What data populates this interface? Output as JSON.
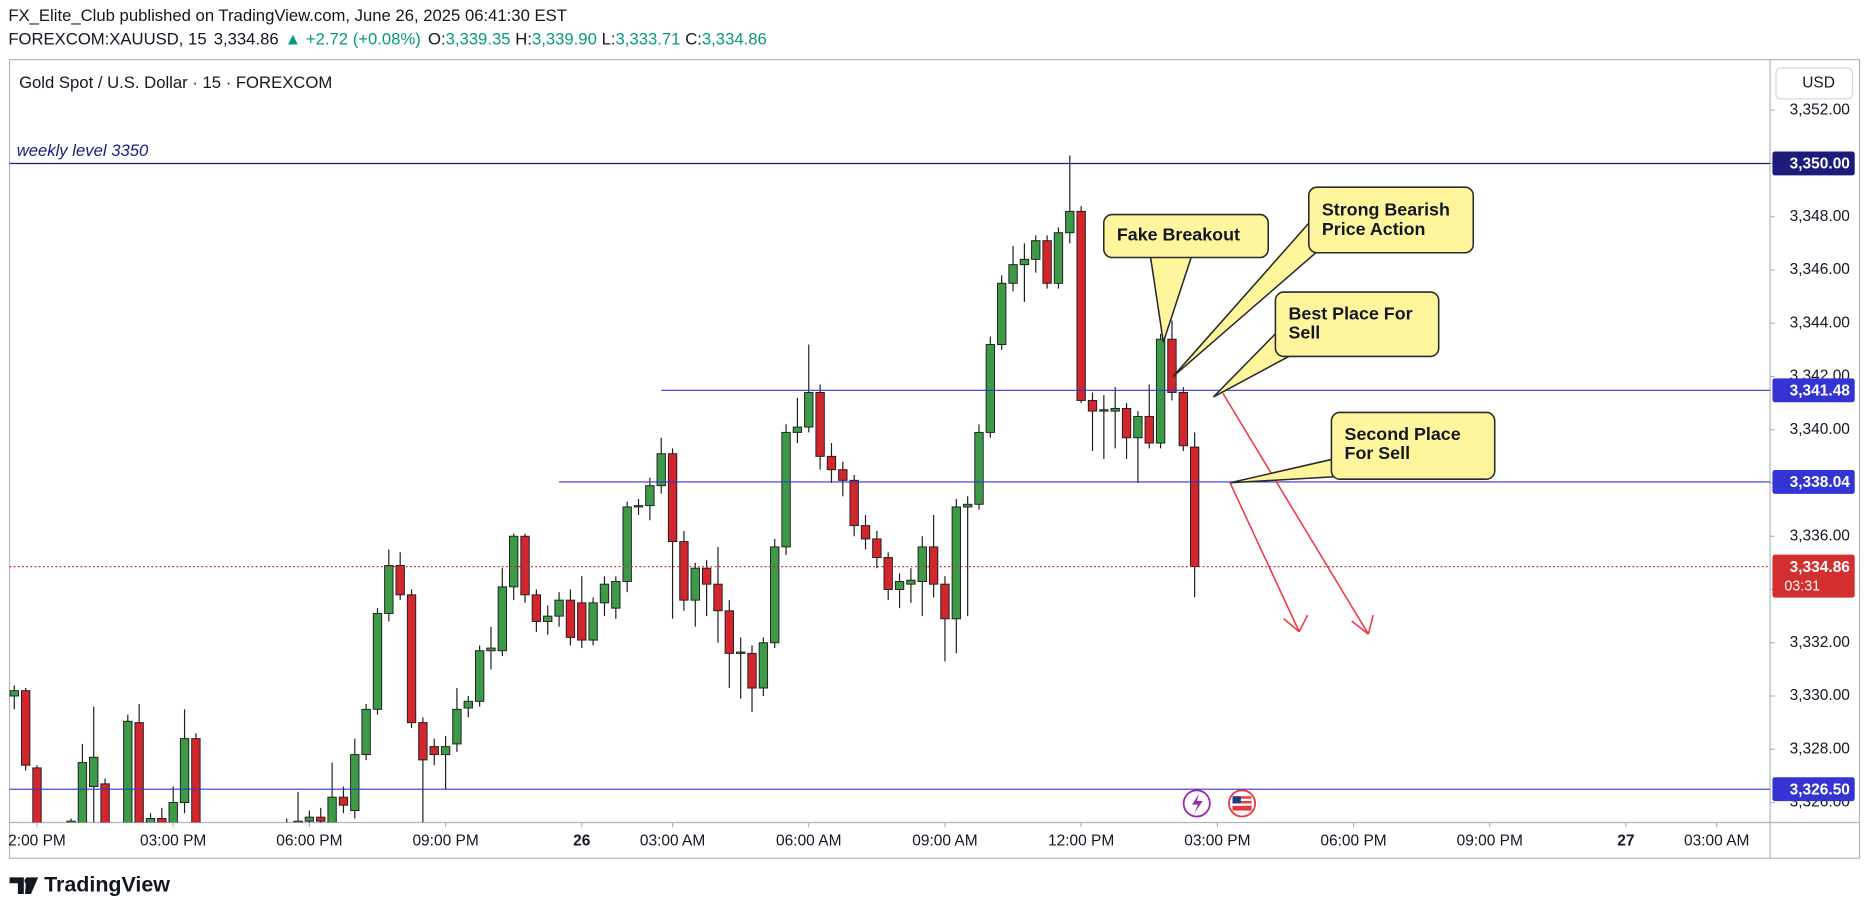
{
  "header": {
    "published": "FX_Elite_Club published on TradingView.com, June 26, 2025 06:41:30 EST",
    "symbol": "FOREXCOM:XAUUSD, 15",
    "last": "3,334.86",
    "change": "+2.72 (+0.08%)",
    "ohlc": [
      {
        "key": "O:",
        "value": "3,339.35"
      },
      {
        "key": "H:",
        "value": "3,339.90"
      },
      {
        "key": "L:",
        "value": "3,333.71"
      },
      {
        "key": "C:",
        "value": "3,334.86"
      }
    ]
  },
  "chart_data": {
    "type": "candlestick",
    "title": "Gold Spot / U.S. Dollar · 15 · FOREXCOM",
    "currency": "USD",
    "up_color": "#3d9a46",
    "down_color": "#d3262c",
    "open": [
      3330.0,
      3330.2,
      3327.3,
      3324.5,
      3324.0,
      3324.8,
      3325.0,
      3326.6,
      3326.7,
      3324.5,
      3325.0,
      3329.0,
      3324.9,
      3325.4,
      3325.1,
      3326.0,
      3328.4,
      3324.8,
      3324.0,
      3323.5,
      3324.0,
      3323.8,
      3324.2,
      3324.6,
      3324.3,
      3325.0,
      3325.3,
      3325.45,
      3325.0,
      3326.2,
      3325.7,
      3327.8,
      3329.5,
      3333.1,
      3334.9,
      3333.8,
      3329.0,
      3328.1,
      3327.8,
      3328.2,
      3329.55,
      3329.8,
      3331.7,
      3331.7,
      3334.1,
      3336.0,
      3333.8,
      3332.8,
      3333.0,
      3333.6,
      3333.5,
      3332.1,
      3333.5,
      3333.3,
      3334.3,
      3337.1,
      3337.15,
      3337.9,
      3339.1,
      3335.8,
      3333.6,
      3334.8,
      3334.2,
      3333.2,
      3331.6,
      3331.6,
      3330.3,
      3332.0,
      3335.6,
      3339.9,
      3340.1,
      3341.4,
      3339.0,
      3338.5,
      3338.1,
      3336.4,
      3335.9,
      3335.2,
      3334.0,
      3334.2,
      3334.3,
      3335.6,
      3334.2,
      3332.9,
      3337.1,
      3337.2,
      3339.9,
      3343.2,
      3345.5,
      3346.2,
      3346.4,
      3347.1,
      3345.5,
      3347.4,
      3348.2,
      3341.1,
      3340.7,
      3340.7,
      3340.8,
      3339.7,
      3340.5,
      3339.5,
      3343.4,
      3341.4,
      3339.35
    ],
    "high": [
      3330.4,
      3330.3,
      3327.4,
      3325.0,
      3325.0,
      3325.4,
      3328.2,
      3329.6,
      3326.9,
      3325.2,
      3329.3,
      3329.7,
      3325.6,
      3325.8,
      3326.6,
      3329.5,
      3328.6,
      3325.0,
      3324.6,
      3324.2,
      3324.5,
      3324.4,
      3325.0,
      3325.0,
      3325.4,
      3326.4,
      3325.7,
      3325.8,
      3327.5,
      3326.6,
      3328.4,
      3329.7,
      3333.3,
      3335.5,
      3335.4,
      3334.0,
      3329.2,
      3328.4,
      3328.5,
      3330.3,
      3330.0,
      3331.9,
      3332.6,
      3334.8,
      3336.1,
      3336.1,
      3334.0,
      3333.4,
      3333.9,
      3334.0,
      3334.5,
      3333.7,
      3334.5,
      3334.5,
      3337.3,
      3337.4,
      3338.2,
      3339.7,
      3339.3,
      3336.2,
      3335.0,
      3335.1,
      3335.6,
      3333.6,
      3332.2,
      3331.9,
      3332.2,
      3335.9,
      3340.2,
      3341.2,
      3343.2,
      3341.7,
      3339.5,
      3338.8,
      3338.3,
      3336.8,
      3336.2,
      3335.4,
      3334.6,
      3334.8,
      3336.0,
      3336.8,
      3334.5,
      3337.4,
      3337.5,
      3340.2,
      3343.5,
      3345.8,
      3346.9,
      3347.0,
      3347.3,
      3347.3,
      3347.6,
      3350.3,
      3348.4,
      3341.4,
      3341.3,
      3341.6,
      3341.0,
      3340.7,
      3341.7,
      3343.6,
      3344.1,
      3341.6,
      3339.9
    ],
    "low": [
      3329.5,
      3327.2,
      3324.0,
      3323.5,
      3323.8,
      3324.5,
      3324.8,
      3324.8,
      3324.0,
      3323.8,
      3324.8,
      3324.5,
      3324.5,
      3324.6,
      3324.9,
      3325.6,
      3324.5,
      3323.6,
      3323.2,
      3323.0,
      3323.4,
      3323.1,
      3323.8,
      3324.0,
      3324.1,
      3324.8,
      3325.0,
      3325.0,
      3324.7,
      3325.6,
      3325.4,
      3327.6,
      3329.3,
      3332.8,
      3333.6,
      3328.8,
      3324.9,
      3327.4,
      3326.5,
      3327.9,
      3329.2,
      3329.6,
      3331.0,
      3331.5,
      3333.6,
      3333.5,
      3332.4,
      3332.3,
      3332.6,
      3331.9,
      3331.8,
      3331.9,
      3333.0,
      3332.9,
      3333.9,
      3336.8,
      3336.6,
      3337.6,
      3332.9,
      3333.2,
      3332.6,
      3333.0,
      3332.0,
      3330.3,
      3329.9,
      3329.4,
      3330.0,
      3331.8,
      3335.3,
      3339.5,
      3339.9,
      3338.5,
      3338.0,
      3337.5,
      3336.0,
      3335.5,
      3334.8,
      3333.6,
      3333.3,
      3333.5,
      3333.0,
      3333.7,
      3331.3,
      3331.6,
      3333.0,
      3337.0,
      3339.7,
      3343.0,
      3345.2,
      3344.8,
      3345.9,
      3345.3,
      3345.3,
      3347.0,
      3341.0,
      3339.2,
      3338.9,
      3339.3,
      3338.9,
      3338.0,
      3339.3,
      3339.3,
      3341.1,
      3339.2,
      3333.71
    ],
    "close": [
      3330.2,
      3327.4,
      3324.5,
      3324.0,
      3324.8,
      3325.3,
      3327.5,
      3327.7,
      3324.5,
      3325.0,
      3329.05,
      3324.9,
      3325.4,
      3325.1,
      3326.0,
      3328.4,
      3324.8,
      3324.0,
      3323.5,
      3324.0,
      3323.8,
      3324.2,
      3324.6,
      3324.3,
      3325.0,
      3325.3,
      3325.45,
      3325.3,
      3326.2,
      3325.9,
      3327.8,
      3329.5,
      3333.1,
      3334.9,
      3333.8,
      3329.0,
      3327.6,
      3327.8,
      3328.1,
      3329.5,
      3329.8,
      3331.7,
      3331.8,
      3334.1,
      3336.0,
      3333.8,
      3332.8,
      3333.0,
      3333.6,
      3332.2,
      3332.1,
      3333.5,
      3334.2,
      3334.3,
      3337.1,
      3337.15,
      3337.9,
      3339.1,
      3335.8,
      3333.6,
      3334.8,
      3334.2,
      3333.2,
      3331.6,
      3331.65,
      3330.3,
      3332.0,
      3335.6,
      3339.9,
      3340.1,
      3341.4,
      3339.0,
      3338.5,
      3338.1,
      3336.4,
      3335.9,
      3335.2,
      3334.0,
      3334.3,
      3334.35,
      3335.6,
      3334.2,
      3332.9,
      3337.1,
      3337.2,
      3339.9,
      3343.2,
      3345.5,
      3346.2,
      3346.4,
      3347.1,
      3345.5,
      3347.4,
      3348.2,
      3341.1,
      3340.7,
      3340.75,
      3340.8,
      3339.7,
      3340.5,
      3339.5,
      3343.4,
      3341.4,
      3339.4,
      3334.86
    ],
    "xlim": [
      -0.42,
      154.7
    ],
    "xticks": [
      {
        "value": 2,
        "label": "2:00 PM"
      },
      {
        "value": 14,
        "label": "03:00 PM"
      },
      {
        "value": 26,
        "label": "06:00 PM"
      },
      {
        "value": 38,
        "label": "09:00 PM"
      },
      {
        "value": 50,
        "label": "26"
      },
      {
        "value": 58,
        "label": "03:00 AM"
      },
      {
        "value": 70,
        "label": "06:00 AM"
      },
      {
        "value": 82,
        "label": "09:00 AM"
      },
      {
        "value": 94,
        "label": "12:00 PM"
      },
      {
        "value": 106,
        "label": "03:00 PM"
      },
      {
        "value": 118,
        "label": "06:00 PM"
      },
      {
        "value": 130,
        "label": "09:00 PM"
      },
      {
        "value": 142,
        "label": "27"
      },
      {
        "value": 150,
        "label": "03:00 AM"
      }
    ],
    "ylim": [
      3325.25,
      3353.9
    ],
    "yticks": [
      {
        "value": 3326,
        "label": "3,326.00"
      },
      {
        "value": 3328,
        "label": "3,328.00"
      },
      {
        "value": 3330,
        "label": "3,330.00"
      },
      {
        "value": 3332,
        "label": "3,332.00"
      },
      {
        "value": 3334,
        "label": "3,334.00"
      },
      {
        "value": 3336,
        "label": "3,336.00"
      },
      {
        "value": 3338,
        "label": "3,338.00"
      },
      {
        "value": 3340,
        "label": "3,340.00"
      },
      {
        "value": 3342,
        "label": "3,342.00"
      },
      {
        "value": 3344,
        "label": "3,344.00"
      },
      {
        "value": 3346,
        "label": "3,346.00"
      },
      {
        "value": 3348,
        "label": "3,348.00"
      },
      {
        "value": 3350,
        "label": "3,350.00"
      },
      {
        "value": 3352,
        "label": "3,352.00"
      }
    ],
    "levels": [
      {
        "value": 3350,
        "label": "3,350.00",
        "name": "weekly level 3350",
        "start": -0.42,
        "color": "#1c1c7a"
      },
      {
        "value": 3341.48,
        "label": "3,341.48",
        "start": 57,
        "color": "#3434d4"
      },
      {
        "value": 3338.04,
        "label": "3,338.04",
        "start": 48,
        "color": "#3434d4"
      },
      {
        "value": 3326.5,
        "label": "3,326.50",
        "start": -0.42,
        "color": "#3434d4"
      }
    ],
    "last_price": {
      "value": 3334.86,
      "label": "3,334.86",
      "countdown": "03:31",
      "color": "#d32f2f"
    },
    "annotations": [
      {
        "lines": [
          "Fake Breakout"
        ]
      },
      {
        "lines": [
          "Strong Bearish",
          "Price Action"
        ]
      },
      {
        "lines": [
          "Best Place For",
          "Sell"
        ]
      },
      {
        "lines": [
          "Second Place",
          "For Sell"
        ]
      }
    ]
  },
  "footer": {
    "brand": "TradingView"
  }
}
